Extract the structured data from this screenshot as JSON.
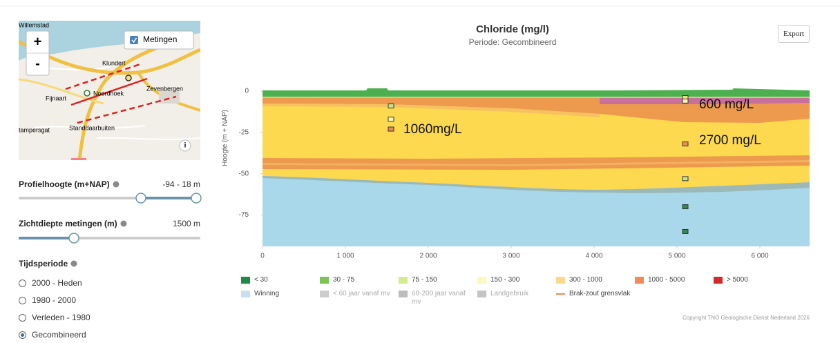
{
  "map": {
    "places": [
      "Willemstad",
      "Klundert",
      "Noordhoek",
      "Fijnaart",
      "Zevenbergen",
      "Standdaarbuiten",
      "tampersgat"
    ],
    "zoom_in": "+",
    "zoom_out": "-",
    "layer_toggle": "Metingen",
    "info": "i"
  },
  "controls": {
    "profile_height": {
      "label": "Profielhoogte (m+NAP)",
      "value": "-94 - 18 m"
    },
    "view_depth": {
      "label": "Zichtdiepte metingen (m)",
      "value": "1500 m"
    },
    "period": {
      "label": "Tijdsperiode",
      "options": [
        "2000 - Heden",
        "1980 - 2000",
        "Verleden - 1980",
        "Gecombineerd"
      ],
      "selected": 3
    }
  },
  "export": "Export",
  "chart_data": {
    "type": "scatter",
    "title": "Chloride (mg/l)",
    "subtitle": "Periode: Gecombineerd",
    "y_label": "Hoogte (m + NAP)",
    "annotations": [
      "1060mg/L",
      "600 mg/L",
      "2700 mg/L"
    ],
    "x": [
      1550,
      1550,
      1550,
      5100,
      5100,
      5100,
      5100,
      5100,
      5100
    ],
    "values": [
      -9,
      -17,
      -23,
      -4,
      -6,
      -32,
      -53,
      -70,
      -85
    ],
    "colors": [
      "#c6e48b",
      "#fdf6b4",
      "#ee8c50",
      "#f5e67a",
      "#fdf6b4",
      "#ee8c50",
      "#c6e48b",
      "#2e8b4e",
      "#2e8b4e"
    ],
    "xlim": [
      0,
      6600
    ],
    "ylim": [
      -94,
      3
    ],
    "xticks": [
      0,
      {
        "value": 1000,
        "label": "1 000"
      },
      {
        "value": 2000,
        "label": "2 000"
      },
      {
        "value": 3000,
        "label": "3 000"
      },
      {
        "value": 4000,
        "label": "4 000"
      },
      {
        "value": 5000,
        "label": "5 000"
      },
      {
        "value": 6000,
        "label": "6 000"
      }
    ],
    "yticks": [
      0,
      -25,
      -50,
      -75
    ]
  },
  "legend": [
    {
      "label": "< 30",
      "color": "#1e8b45"
    },
    {
      "label": "30 - 75",
      "color": "#7cc555"
    },
    {
      "label": "75 - 150",
      "color": "#d4ec8e"
    },
    {
      "label": "150 - 300",
      "color": "#fdf8bc"
    },
    {
      "label": "300 - 1000",
      "color": "#fcd98a"
    },
    {
      "label": "1000 - 5000",
      "color": "#f08a58"
    },
    {
      "label": "> 5000",
      "color": "#d62a2a"
    },
    {
      "label": "Winning",
      "color": "#c9dff0"
    },
    {
      "label": "< 60 jaar vanaf mv",
      "color": "#cccccc"
    },
    {
      "label": "60-200 jaar vanaf mv",
      "color": "#bdbdbd"
    },
    {
      "label": "Landgebruik",
      "color": "#c4c4c4"
    },
    {
      "label": "Brak-zout grensvlak",
      "color": "#f08a58"
    }
  ],
  "copyright": "Copyright TNO Geologische Dienst Nederland 2026"
}
